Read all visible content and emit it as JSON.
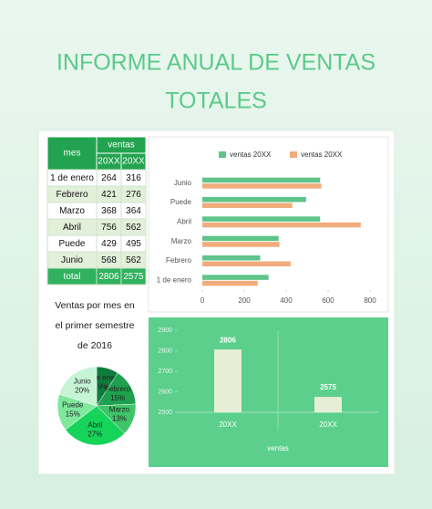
{
  "title": {
    "line1": "INFORME ANUAL DE VENTAS",
    "line2": "TOTALES"
  },
  "table": {
    "header": {
      "mes": "mes",
      "ventas": "ventas",
      "col1": "20XX",
      "col2": "20XX"
    },
    "rows": [
      [
        "1 de enero",
        264,
        316
      ],
      [
        "Febrero",
        421,
        276
      ],
      [
        "Marzo",
        368,
        364
      ],
      [
        "Abril",
        756,
        562
      ],
      [
        "Puede",
        429,
        495
      ],
      [
        "Junio",
        568,
        562
      ],
      [
        "total",
        2806,
        2575
      ]
    ]
  },
  "chart_data": [
    {
      "type": "bar",
      "orientation": "horizontal",
      "categories": [
        "1 de enero",
        "Febrero",
        "Marzo",
        "Abril",
        "Puede",
        "Junio"
      ],
      "series": [
        {
          "name": "ventas 20XX",
          "color": "#5ec48a",
          "values": [
            316,
            276,
            364,
            562,
            495,
            562
          ]
        },
        {
          "name": "ventas 20XX",
          "color": "#f0ac7c",
          "values": [
            264,
            421,
            368,
            756,
            429,
            568
          ]
        }
      ],
      "xlim": [
        0,
        800
      ],
      "xticks": [
        0,
        200,
        400,
        600,
        800
      ],
      "legend": "top"
    },
    {
      "type": "column",
      "categories": [
        "20XX",
        "20XX"
      ],
      "values": [
        2806,
        2575
      ],
      "color": "#e6efd6",
      "x_label": "ventas",
      "ylim": [
        2500,
        2900
      ],
      "yticks": [
        2500,
        2600,
        2700,
        2800,
        2900
      ]
    },
    {
      "type": "pie",
      "title_lines": [
        "Ventas por mes en",
        "el primer semestre",
        "de 2016"
      ],
      "categories": [
        "1 de enero",
        "Febrero",
        "Marzo",
        "Abril",
        "Puede",
        "Junio"
      ],
      "values": [
        9,
        15,
        13,
        27,
        15,
        20
      ],
      "value_labels": [
        "9%",
        "15%",
        "13%",
        "27%",
        "15%",
        "20%"
      ],
      "colors": [
        "#0e7d3c",
        "#1fa04e",
        "#3fc468",
        "#16d45a",
        "#7fe89d",
        "#c6f5d6"
      ]
    }
  ]
}
